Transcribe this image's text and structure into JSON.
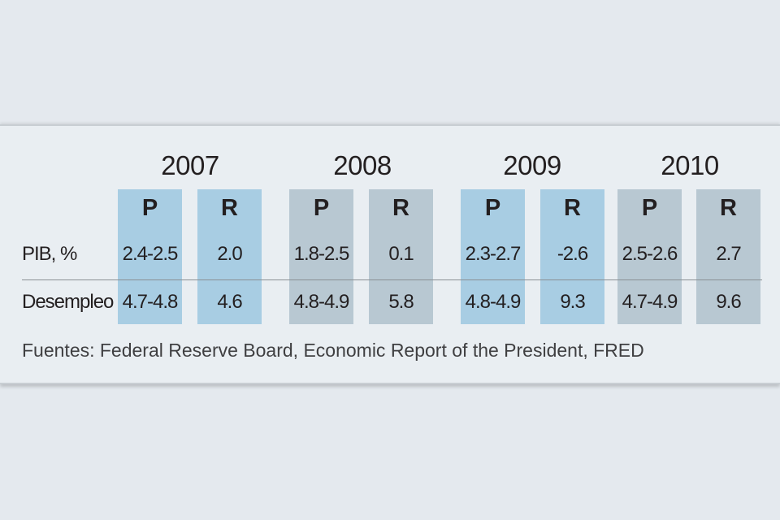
{
  "chart_data": {
    "type": "table",
    "years": [
      "2007",
      "2008",
      "2009",
      "2010"
    ],
    "subheaders": [
      "P",
      "R"
    ],
    "rows": [
      {
        "label": "PIB, %",
        "values": [
          "2.4-2.5",
          "2.0",
          "1.8-2.5",
          "0.1",
          "2.3-2.7",
          "-2.6",
          "2.5-2.6",
          "2.7"
        ]
      },
      {
        "label": "Desempleo",
        "values": [
          "4.7-4.8",
          "4.6",
          "4.8-4.9",
          "5.8",
          "4.8-4.9",
          "9.3",
          "4.7-4.9",
          "9.6"
        ]
      }
    ],
    "source": "Fuentes: Federal Reserve Board, Economic Report of the President, FRED",
    "colors": {
      "blue_column": "#a8cde3",
      "gray_column": "#b8c8d2",
      "background": "#e9eef2"
    }
  }
}
